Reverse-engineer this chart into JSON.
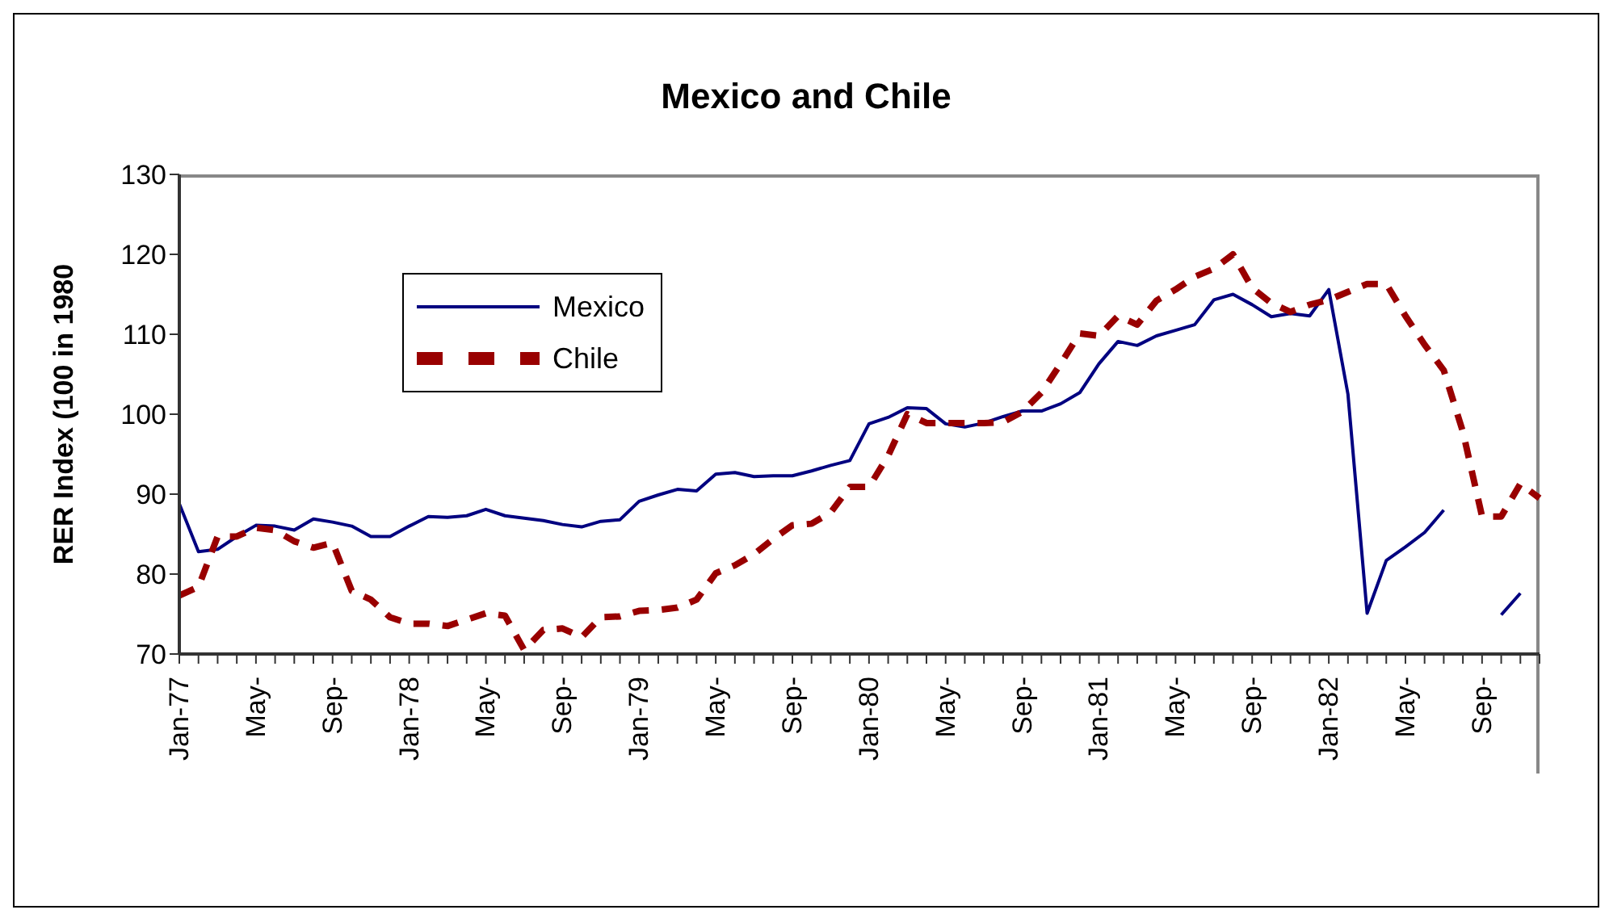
{
  "chart_data": {
    "type": "line",
    "title": "Mexico and Chile",
    "ylabel": "RER Index (100 in 1980",
    "categories": [
      "Jan-77",
      null,
      null,
      null,
      "May-",
      null,
      null,
      null,
      "Sep-",
      null,
      null,
      null,
      "Jan-78",
      null,
      null,
      null,
      "May-",
      null,
      null,
      null,
      "Sep-",
      null,
      null,
      null,
      "Jan-79",
      null,
      null,
      null,
      "May-",
      null,
      null,
      null,
      "Sep-",
      null,
      null,
      null,
      "Jan-80",
      null,
      null,
      null,
      "May-",
      null,
      null,
      null,
      "Sep-",
      null,
      null,
      null,
      "Jan-81",
      null,
      null,
      null,
      "May-",
      null,
      null,
      null,
      "Sep-",
      null,
      null,
      null,
      "Jan-82",
      null,
      null,
      null,
      "May-",
      null,
      null,
      null,
      "Sep-",
      null,
      null,
      null
    ],
    "series": [
      {
        "name": "Mexico",
        "color": "#000080",
        "line_style": "solid",
        "values": [
          88.8,
          82.8,
          83.1,
          84.7,
          86.1,
          86.0,
          85.5,
          86.9,
          86.5,
          86.0,
          84.7,
          84.7,
          86.0,
          87.2,
          87.1,
          87.3,
          88.1,
          87.3,
          87.0,
          86.7,
          86.2,
          85.9,
          86.6,
          86.8,
          89.1,
          89.9,
          90.6,
          90.4,
          92.5,
          92.7,
          92.2,
          92.3,
          92.3,
          92.9,
          93.6,
          94.2,
          98.8,
          99.6,
          100.8,
          100.7,
          98.8,
          98.4,
          98.9,
          99.7,
          100.4,
          100.4,
          101.3,
          102.7,
          106.3,
          109.1,
          108.6,
          109.8,
          110.5,
          111.2,
          114.3,
          115.0,
          113.7,
          112.2,
          112.6,
          112.3,
          115.6,
          102.5,
          75.1,
          81.7,
          83.4,
          85.2,
          88.0,
          null,
          null,
          74.9,
          77.6,
          null
        ]
      },
      {
        "name": "Chile",
        "color": "#990000",
        "line_style": "dashed",
        "values": [
          77.3,
          78.4,
          84.7,
          84.7,
          85.8,
          85.5,
          84.1,
          83.3,
          83.9,
          77.9,
          76.8,
          74.6,
          73.8,
          73.8,
          73.5,
          74.3,
          75.1,
          74.8,
          70.5,
          73.0,
          73.2,
          72.1,
          74.6,
          74.7,
          75.4,
          75.5,
          75.8,
          76.8,
          80.1,
          81.1,
          82.5,
          84.4,
          86.1,
          86.3,
          87.7,
          90.9,
          90.9,
          94.8,
          100.0,
          98.9,
          98.9,
          98.9,
          98.9,
          99.0,
          100.3,
          102.7,
          106.3,
          110.1,
          109.8,
          112.3,
          111.2,
          114.2,
          115.6,
          117.2,
          118.2,
          120.0,
          115.8,
          113.9,
          112.8,
          113.7,
          114.3,
          115.3,
          116.3,
          116.3,
          112.3,
          108.7,
          105.5,
          97.8,
          87.2,
          87.2,
          91.3,
          89.5
        ]
      }
    ],
    "ylim": [
      70,
      130
    ],
    "yticks": [
      70,
      80,
      90,
      100,
      110,
      120,
      130
    ],
    "grid": false,
    "legend": "top left",
    "marker": "none"
  }
}
